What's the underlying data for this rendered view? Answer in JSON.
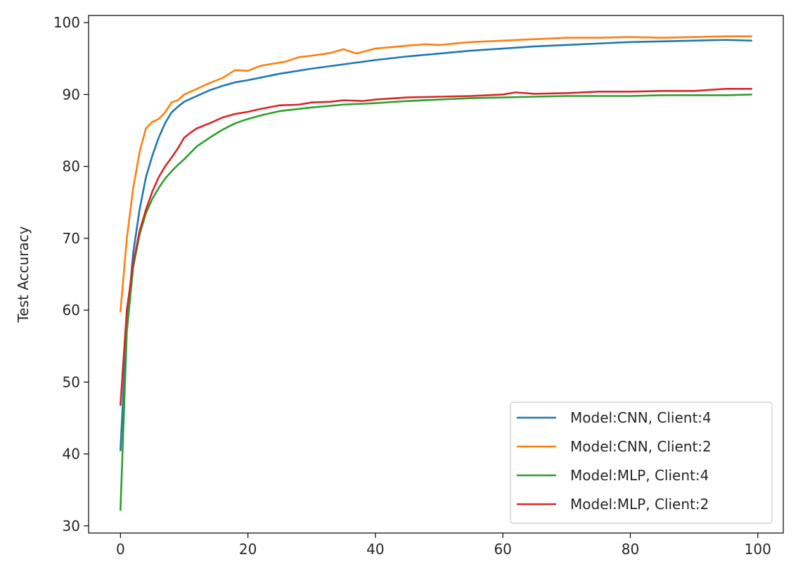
{
  "chart_data": {
    "type": "line",
    "title": "",
    "xlabel": "",
    "ylabel": "Test Accuracy",
    "xlim": [
      -5,
      104
    ],
    "ylim": [
      29,
      101
    ],
    "x_ticks": [
      0,
      20,
      40,
      60,
      80,
      100
    ],
    "y_ticks": [
      30,
      40,
      50,
      60,
      70,
      80,
      90,
      100
    ],
    "grid": false,
    "legend_position": "lower-right",
    "series": [
      {
        "name": "Model:CNN, Client:4",
        "color": "#1f77b4",
        "points": [
          [
            0,
            40.5
          ],
          [
            1,
            58
          ],
          [
            2,
            68
          ],
          [
            3,
            74
          ],
          [
            4,
            78.5
          ],
          [
            5,
            81.5
          ],
          [
            6,
            84
          ],
          [
            7,
            86
          ],
          [
            8,
            87.5
          ],
          [
            9,
            88.3
          ],
          [
            10,
            89
          ],
          [
            12,
            89.8
          ],
          [
            14,
            90.6
          ],
          [
            16,
            91.2
          ],
          [
            18,
            91.7
          ],
          [
            20,
            92
          ],
          [
            25,
            92.9
          ],
          [
            30,
            93.6
          ],
          [
            35,
            94.2
          ],
          [
            40,
            94.8
          ],
          [
            45,
            95.3
          ],
          [
            50,
            95.7
          ],
          [
            55,
            96.1
          ],
          [
            60,
            96.4
          ],
          [
            65,
            96.7
          ],
          [
            70,
            96.9
          ],
          [
            75,
            97.1
          ],
          [
            80,
            97.3
          ],
          [
            85,
            97.4
          ],
          [
            90,
            97.5
          ],
          [
            95,
            97.6
          ],
          [
            99,
            97.5
          ]
        ]
      },
      {
        "name": "Model:CNN, Client:2",
        "color": "#ff7f0e",
        "points": [
          [
            0,
            59.8
          ],
          [
            1,
            70
          ],
          [
            2,
            77
          ],
          [
            3,
            82
          ],
          [
            4,
            85.3
          ],
          [
            5,
            86.2
          ],
          [
            6,
            86.6
          ],
          [
            7,
            87.5
          ],
          [
            8,
            88.9
          ],
          [
            9,
            89.2
          ],
          [
            10,
            90
          ],
          [
            12,
            90.8
          ],
          [
            14,
            91.6
          ],
          [
            16,
            92.3
          ],
          [
            18,
            93.4
          ],
          [
            20,
            93.3
          ],
          [
            22,
            94
          ],
          [
            24,
            94.3
          ],
          [
            26,
            94.6
          ],
          [
            28,
            95.2
          ],
          [
            30,
            95.4
          ],
          [
            33,
            95.8
          ],
          [
            35,
            96.3
          ],
          [
            37,
            95.7
          ],
          [
            40,
            96.4
          ],
          [
            45,
            96.8
          ],
          [
            48,
            97
          ],
          [
            50,
            96.9
          ],
          [
            55,
            97.3
          ],
          [
            60,
            97.5
          ],
          [
            65,
            97.7
          ],
          [
            70,
            97.9
          ],
          [
            75,
            97.9
          ],
          [
            80,
            98
          ],
          [
            85,
            97.9
          ],
          [
            90,
            98
          ],
          [
            95,
            98.1
          ],
          [
            99,
            98.1
          ]
        ]
      },
      {
        "name": "Model:MLP, Client:4",
        "color": "#2ca02c",
        "points": [
          [
            0,
            32.2
          ],
          [
            1,
            57
          ],
          [
            2,
            66
          ],
          [
            3,
            70.5
          ],
          [
            4,
            73.5
          ],
          [
            5,
            75.5
          ],
          [
            6,
            77
          ],
          [
            7,
            78.3
          ],
          [
            8,
            79.3
          ],
          [
            9,
            80.2
          ],
          [
            10,
            81
          ],
          [
            12,
            82.8
          ],
          [
            14,
            84
          ],
          [
            16,
            85.1
          ],
          [
            18,
            86
          ],
          [
            20,
            86.6
          ],
          [
            22,
            87.1
          ],
          [
            25,
            87.7
          ],
          [
            30,
            88.2
          ],
          [
            35,
            88.6
          ],
          [
            40,
            88.8
          ],
          [
            45,
            89.1
          ],
          [
            50,
            89.3
          ],
          [
            55,
            89.5
          ],
          [
            60,
            89.6
          ],
          [
            65,
            89.7
          ],
          [
            70,
            89.8
          ],
          [
            75,
            89.8
          ],
          [
            80,
            89.8
          ],
          [
            85,
            89.9
          ],
          [
            90,
            89.9
          ],
          [
            95,
            89.9
          ],
          [
            99,
            90
          ]
        ]
      },
      {
        "name": "Model:MLP, Client:2",
        "color": "#d62728",
        "points": [
          [
            0,
            46.8
          ],
          [
            1,
            60
          ],
          [
            2,
            66.5
          ],
          [
            3,
            71
          ],
          [
            4,
            74
          ],
          [
            5,
            76.5
          ],
          [
            6,
            78.5
          ],
          [
            7,
            80
          ],
          [
            8,
            81.2
          ],
          [
            9,
            82.5
          ],
          [
            10,
            84
          ],
          [
            11,
            84.7
          ],
          [
            12,
            85.3
          ],
          [
            14,
            86
          ],
          [
            16,
            86.8
          ],
          [
            18,
            87.3
          ],
          [
            20,
            87.6
          ],
          [
            22,
            88
          ],
          [
            25,
            88.5
          ],
          [
            28,
            88.6
          ],
          [
            30,
            88.9
          ],
          [
            33,
            89
          ],
          [
            35,
            89.2
          ],
          [
            38,
            89.1
          ],
          [
            40,
            89.3
          ],
          [
            45,
            89.6
          ],
          [
            50,
            89.7
          ],
          [
            55,
            89.8
          ],
          [
            60,
            90
          ],
          [
            62,
            90.3
          ],
          [
            65,
            90.1
          ],
          [
            70,
            90.2
          ],
          [
            75,
            90.4
          ],
          [
            80,
            90.4
          ],
          [
            85,
            90.5
          ],
          [
            90,
            90.5
          ],
          [
            95,
            90.8
          ],
          [
            99,
            90.8
          ]
        ]
      }
    ]
  }
}
